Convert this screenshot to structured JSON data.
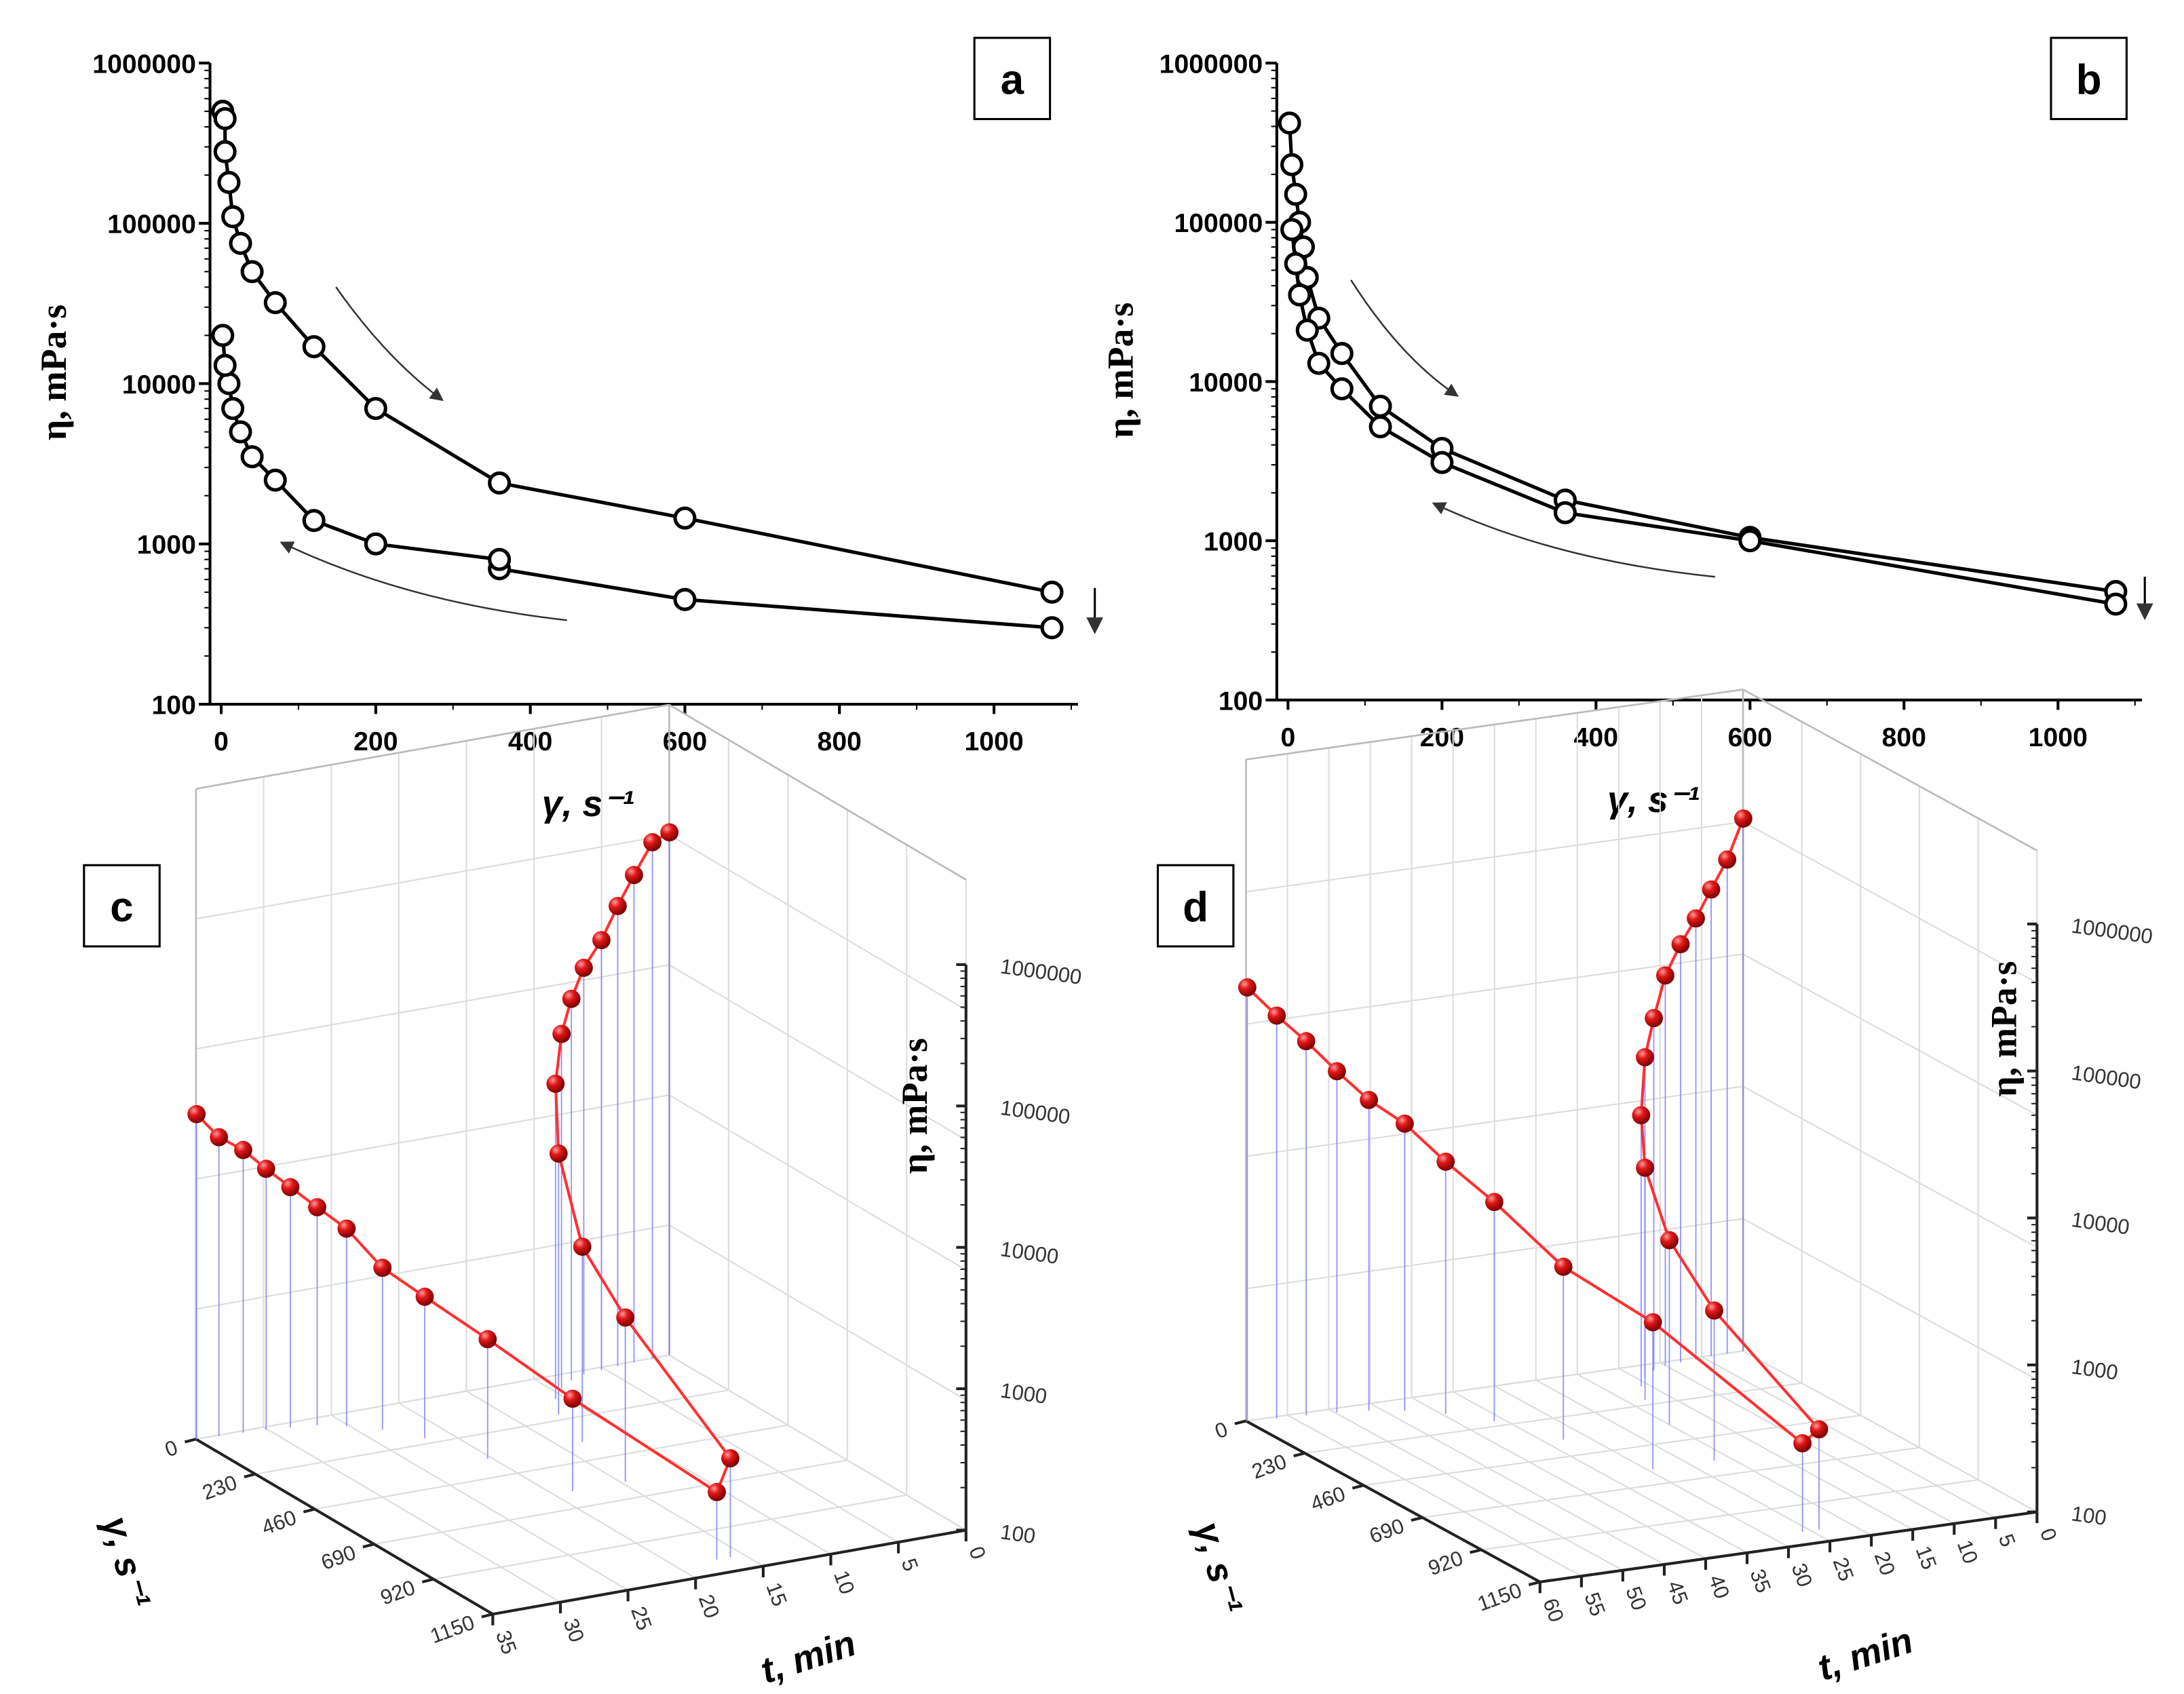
{
  "chart_data": [
    {
      "panel": "a",
      "type": "scatter",
      "xlabel": "γ, s⁻¹",
      "ylabel": "η, mPa·s",
      "xlim": [
        0,
        1100
      ],
      "ylim": [
        100,
        1000000
      ],
      "yscale": "log",
      "xticks": [
        "0",
        "200",
        "400",
        "600",
        "800",
        "1000"
      ],
      "yticks": [
        "100",
        "1000",
        "10000",
        "100000",
        "1000000"
      ],
      "series": [
        {
          "name": "up",
          "x": [
            2,
            5,
            5,
            10,
            15,
            25,
            40,
            70,
            120,
            200,
            360,
            600,
            1075
          ],
          "y": [
            500000,
            450000,
            280000,
            180000,
            110000,
            75000,
            50000,
            32000,
            17000,
            7000,
            2400,
            1450,
            500
          ]
        },
        {
          "name": "down",
          "x": [
            1075,
            600,
            360,
            360,
            200,
            120,
            70,
            40,
            25,
            15,
            10,
            5,
            2
          ],
          "y": [
            300,
            450,
            700,
            800,
            1000,
            1400,
            2500,
            3500,
            5000,
            7000,
            10000,
            13000,
            20000
          ]
        }
      ]
    },
    {
      "panel": "b",
      "type": "scatter",
      "xlabel": "γ, s⁻¹",
      "ylabel": "η, mPa·s",
      "xlim": [
        0,
        1100
      ],
      "ylim": [
        100,
        1000000
      ],
      "yscale": "log",
      "xticks": [
        "0",
        "200",
        "400",
        "600",
        "800",
        "1000"
      ],
      "yticks": [
        "100",
        "1000",
        "10000",
        "100000",
        "1000000"
      ],
      "series": [
        {
          "name": "up",
          "x": [
            2,
            5,
            10,
            15,
            20,
            25,
            40,
            70,
            120,
            200,
            360,
            600,
            1075
          ],
          "y": [
            420000,
            230000,
            150000,
            100000,
            70000,
            45000,
            25000,
            15000,
            7000,
            3800,
            1800,
            1050,
            480
          ]
        },
        {
          "name": "down",
          "x": [
            1075,
            600,
            360,
            200,
            120,
            70,
            40,
            25,
            15,
            10,
            5
          ],
          "y": [
            400,
            1000,
            1500,
            3100,
            5200,
            9000,
            13000,
            21000,
            35000,
            55000,
            90000
          ]
        }
      ]
    },
    {
      "panel": "c",
      "type": "scatter3d",
      "xlabel": "t, min",
      "ylabel": "γ, s⁻¹",
      "zlabel": "η, mPa·s",
      "tticks": [
        "0",
        "5",
        "10",
        "15",
        "20",
        "25",
        "30",
        "35"
      ],
      "gticks": [
        "0",
        "230",
        "460",
        "690",
        "920",
        "1150"
      ],
      "zticks": [
        "100",
        "1000",
        "10000",
        "100000",
        "1000000"
      ],
      "t": [
        0,
        1.3,
        2.7,
        4,
        5.3,
        6.7,
        8,
        9.3,
        10.7,
        12,
        13.3,
        14.7,
        16,
        17,
        18.6,
        20.3,
        21.9,
        23.5,
        25.2,
        26.8,
        28.5,
        30.1,
        31.7,
        33.4,
        35
      ],
      "gamma": [
        1,
        3,
        5,
        10,
        15,
        20,
        40,
        70,
        120,
        200,
        360,
        600,
        1075,
        1075,
        600,
        360,
        200,
        120,
        70,
        40,
        25,
        15,
        10,
        5,
        2
      ],
      "eta": [
        500000,
        450000,
        280000,
        180000,
        110000,
        75000,
        50000,
        32000,
        17000,
        7000,
        2400,
        1450,
        500,
        300,
        450,
        700,
        1000,
        1400,
        2500,
        3500,
        5000,
        7000,
        10000,
        13000,
        20000
      ]
    },
    {
      "panel": "d",
      "type": "scatter3d",
      "xlabel": "t, min",
      "ylabel": "γ, s⁻¹",
      "zlabel": "η, mPa·s",
      "tticks": [
        "0",
        "5",
        "10",
        "15",
        "20",
        "25",
        "30",
        "35",
        "40",
        "45",
        "50",
        "55",
        "60"
      ],
      "gticks": [
        "0",
        "230",
        "460",
        "690",
        "920",
        "1150"
      ],
      "zticks": [
        "100",
        "1000",
        "10000",
        "100000",
        "1000000"
      ],
      "t": [
        0,
        2,
        4,
        6,
        8,
        10,
        12,
        14,
        16,
        18,
        20,
        22,
        24,
        26,
        29.4,
        32.8,
        36.2,
        39.6,
        43,
        46.4,
        49.8,
        53.2,
        56.6,
        60
      ],
      "gamma": [
        1,
        3,
        5,
        10,
        15,
        20,
        40,
        70,
        120,
        200,
        360,
        600,
        1075,
        1075,
        600,
        360,
        200,
        120,
        70,
        40,
        25,
        15,
        10,
        5
      ],
      "eta": [
        420000,
        230000,
        150000,
        100000,
        70000,
        45000,
        25000,
        15000,
        7000,
        3800,
        1800,
        1050,
        480,
        400,
        1000,
        1500,
        3100,
        5200,
        9000,
        13000,
        21000,
        35000,
        55000,
        90000
      ]
    }
  ],
  "colors": {
    "marker3d": "#d11a1a",
    "line3d": "#ff3030",
    "dropline": "#7a7aff",
    "grid": "#dcdcdc"
  }
}
